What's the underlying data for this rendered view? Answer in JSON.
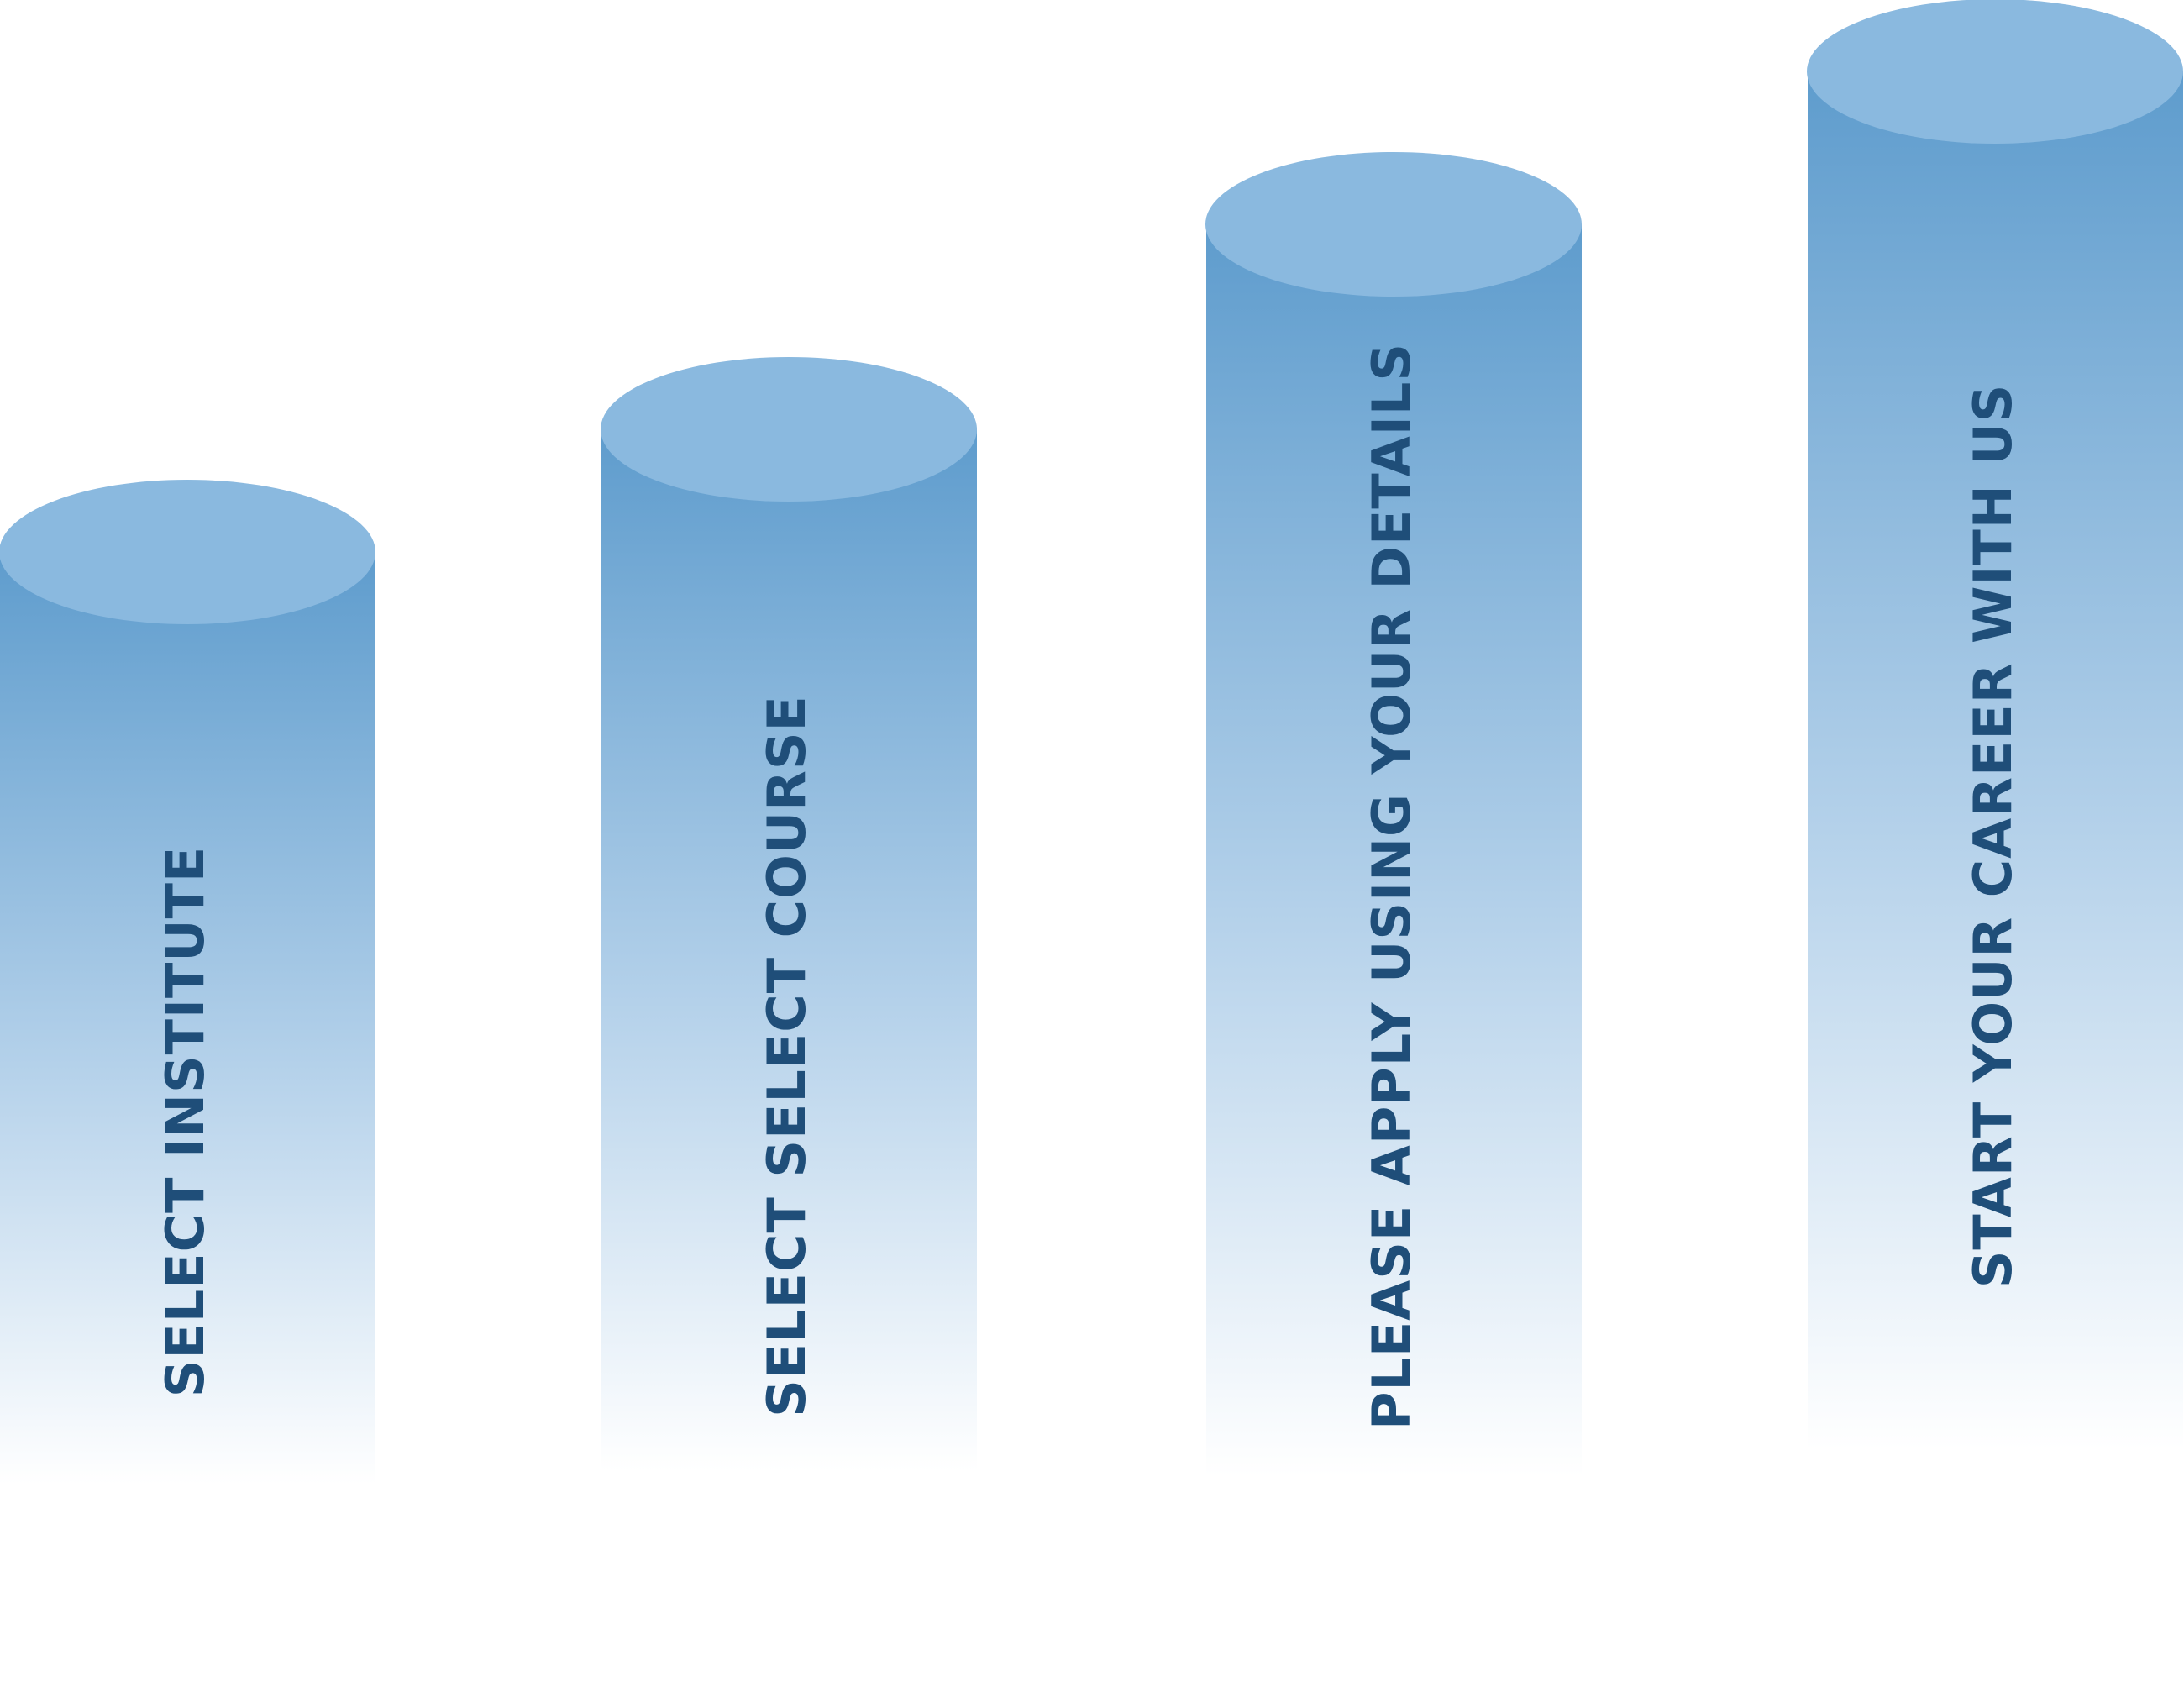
{
  "colors": {
    "cylinder_top": "#8ab9df",
    "cylinder_body_top": "#5e9ccd",
    "cylinder_body_bottom": "#ffffff",
    "label_text": "#1f4e79",
    "background": "#ffffff"
  },
  "steps": [
    {
      "label": "SELECT INSTITUTE"
    },
    {
      "label": "SELECT SELECT COURSE"
    },
    {
      "label": "PLEASE APPLY USING YOUR DETAILS"
    },
    {
      "label": "START YOUR CAREER WITH US"
    }
  ]
}
